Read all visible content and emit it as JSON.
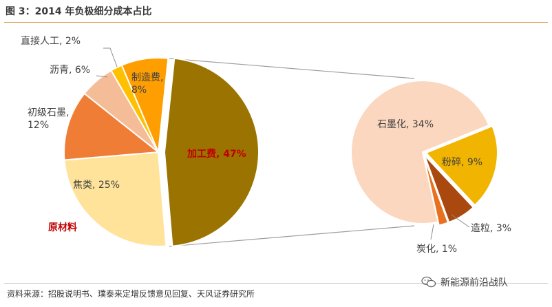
{
  "title": "图 3：2014 年负极细分成本占比",
  "source": "资料来源：招股说明书、璞泰来定增反馈意见回复、天风证券研究所",
  "watermark": {
    "text": "新能源前沿战队",
    "icon": "wechat-icon"
  },
  "chart_data": [
    {
      "type": "pie",
      "slices": [
        {
          "label": "加工费, 47%",
          "value": 47,
          "color": "#9b7300",
          "emphasis": true
        },
        {
          "label": "焦类, 25%",
          "value": 25,
          "color": "#ffe39b"
        },
        {
          "label": "初级石墨, 12%",
          "value": 12,
          "color": "#ef7d36"
        },
        {
          "label": "沥青, 6%",
          "value": 6,
          "color": "#f5bd97"
        },
        {
          "label": "直接人工, 2%",
          "value": 2,
          "color": "#ffc000"
        },
        {
          "label": "制造费, 8%",
          "value": 8,
          "color": "#ff9e00"
        }
      ],
      "group_label": "原材料",
      "exploded_slice": "加工费, 47%"
    },
    {
      "type": "pie",
      "slices": [
        {
          "label": "石墨化, 34%",
          "value": 34,
          "color": "#fcd7c0"
        },
        {
          "label": "粉碎, 9%",
          "value": 9,
          "color": "#f1b400"
        },
        {
          "label": "造粒, 3%",
          "value": 3,
          "color": "#a9480f"
        },
        {
          "label": "炭化, 1%",
          "value": 1,
          "color": "#e8711f"
        }
      ]
    }
  ]
}
